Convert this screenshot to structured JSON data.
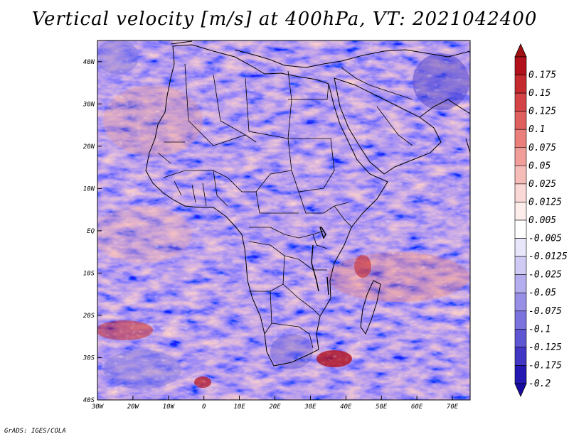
{
  "title": "Vertical velocity [m/s] at 400hPa, VT: 2021042400",
  "footer": "GrADS: IGES/COLA",
  "map": {
    "lon_range": [
      -30,
      75
    ],
    "lat_range": [
      -40,
      45
    ],
    "x_ticks": [
      {
        "value": -30,
        "label": "30W"
      },
      {
        "value": -20,
        "label": "20W"
      },
      {
        "value": -10,
        "label": "10W"
      },
      {
        "value": 0,
        "label": "0"
      },
      {
        "value": 10,
        "label": "10E"
      },
      {
        "value": 20,
        "label": "20E"
      },
      {
        "value": 30,
        "label": "30E"
      },
      {
        "value": 40,
        "label": "40E"
      },
      {
        "value": 50,
        "label": "50E"
      },
      {
        "value": 60,
        "label": "60E"
      },
      {
        "value": 70,
        "label": "70E"
      }
    ],
    "y_ticks": [
      {
        "value": 40,
        "label": "40N"
      },
      {
        "value": 30,
        "label": "30N"
      },
      {
        "value": 20,
        "label": "20N"
      },
      {
        "value": 10,
        "label": "10N"
      },
      {
        "value": 0,
        "label": "EQ"
      },
      {
        "value": -10,
        "label": "10S"
      },
      {
        "value": -20,
        "label": "20S"
      },
      {
        "value": -30,
        "label": "30S"
      },
      {
        "value": -40,
        "label": "40S"
      }
    ]
  },
  "colorbar": {
    "levels": [
      {
        "label": "0.175",
        "color": "#b2101a"
      },
      {
        "label": "0.15",
        "color": "#c42a2e"
      },
      {
        "label": "0.125",
        "color": "#d44346"
      },
      {
        "label": "0.1",
        "color": "#e0605f"
      },
      {
        "label": "0.075",
        "color": "#ea7f7c"
      },
      {
        "label": "0.05",
        "color": "#f19e9a"
      },
      {
        "label": "0.025",
        "color": "#f6bcb8"
      },
      {
        "label": "0.0125",
        "color": "#fad8d5"
      },
      {
        "label": "0.005",
        "color": "#fdeeec"
      },
      {
        "label": "-0.005",
        "color": "#ffffff"
      },
      {
        "label": "-0.0125",
        "color": "#e8e6fa"
      },
      {
        "label": "-0.025",
        "color": "#cfcbf4"
      },
      {
        "label": "-0.05",
        "color": "#b4aeee"
      },
      {
        "label": "-0.075",
        "color": "#9890e6"
      },
      {
        "label": "-0.1",
        "color": "#7b72dd"
      },
      {
        "label": "-0.125",
        "color": "#5e55d2"
      },
      {
        "label": "-0.175",
        "color": "#4137c4"
      },
      {
        "label": "-0.2",
        "color": "#2418b2"
      }
    ],
    "top_color": "#a01012",
    "bottom_color": "#1a0ca0"
  }
}
